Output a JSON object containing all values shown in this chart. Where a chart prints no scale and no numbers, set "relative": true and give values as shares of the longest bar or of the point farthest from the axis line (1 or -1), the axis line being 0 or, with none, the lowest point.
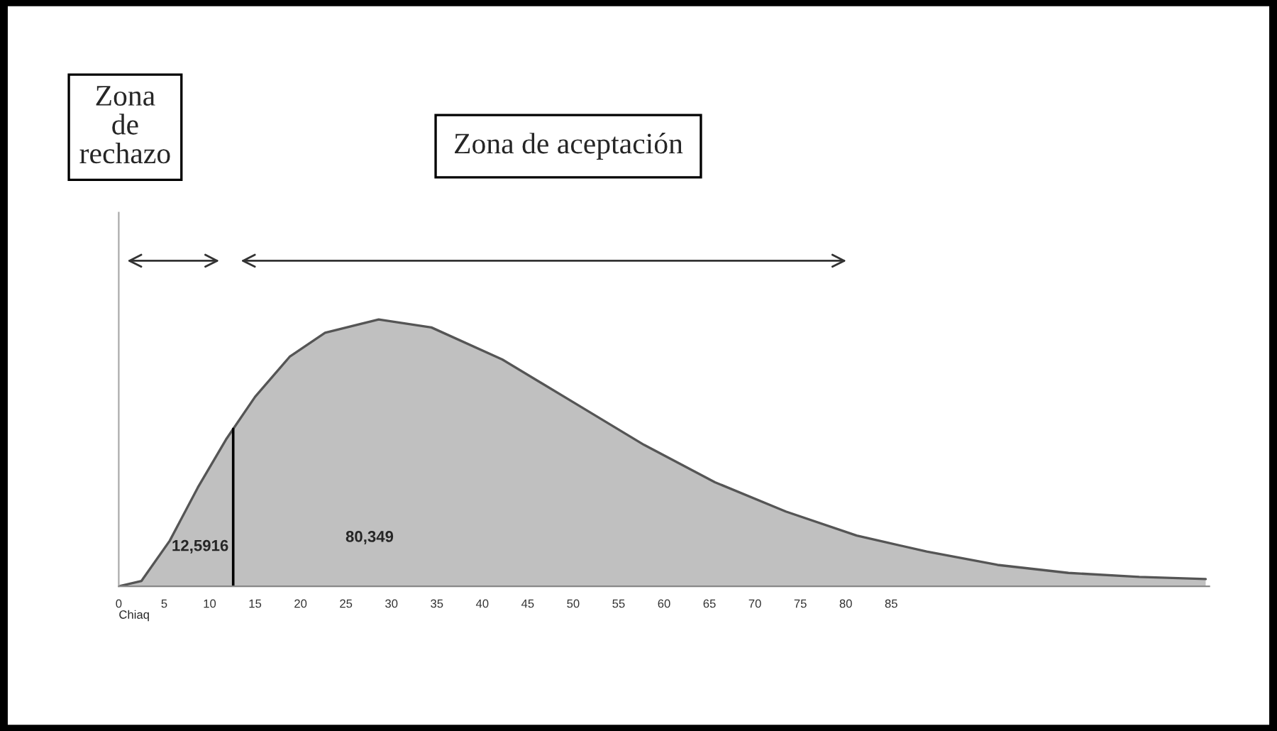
{
  "chart_data": {
    "type": "area",
    "relative": true,
    "xlabel": "Chiaq",
    "x": [
      0,
      2.5,
      5.6,
      8.7,
      11.8,
      15.0,
      18.8,
      22.7,
      28.6,
      34.4,
      42.2,
      50,
      57.8,
      65.6,
      73.4,
      81.2,
      88.9,
      96.7,
      104.5,
      112.3,
      119.6
    ],
    "series": [
      {
        "color": "#c0c0c0",
        "values": [
          0,
          0.02,
          0.17,
          0.37,
          0.55,
          0.71,
          0.86,
          0.95,
          1.0,
          0.97,
          0.85,
          0.69,
          0.53,
          0.39,
          0.28,
          0.19,
          0.13,
          0.08,
          0.05,
          0.035,
          0.027
        ]
      }
    ],
    "xlim": [
      0,
      120
    ],
    "xticks": [
      0,
      5,
      10,
      15,
      20,
      25,
      30,
      35,
      40,
      45,
      50,
      55,
      60,
      65,
      70,
      75,
      80,
      85
    ],
    "ref_lines": [
      {
        "axis": "x",
        "value": 12.5916,
        "label": "12,5916",
        "color": "#000000"
      }
    ],
    "annotations": [
      "Zona\nde\nrechazo",
      "Zona de aceptación",
      "80,349"
    ],
    "grid": false
  }
}
